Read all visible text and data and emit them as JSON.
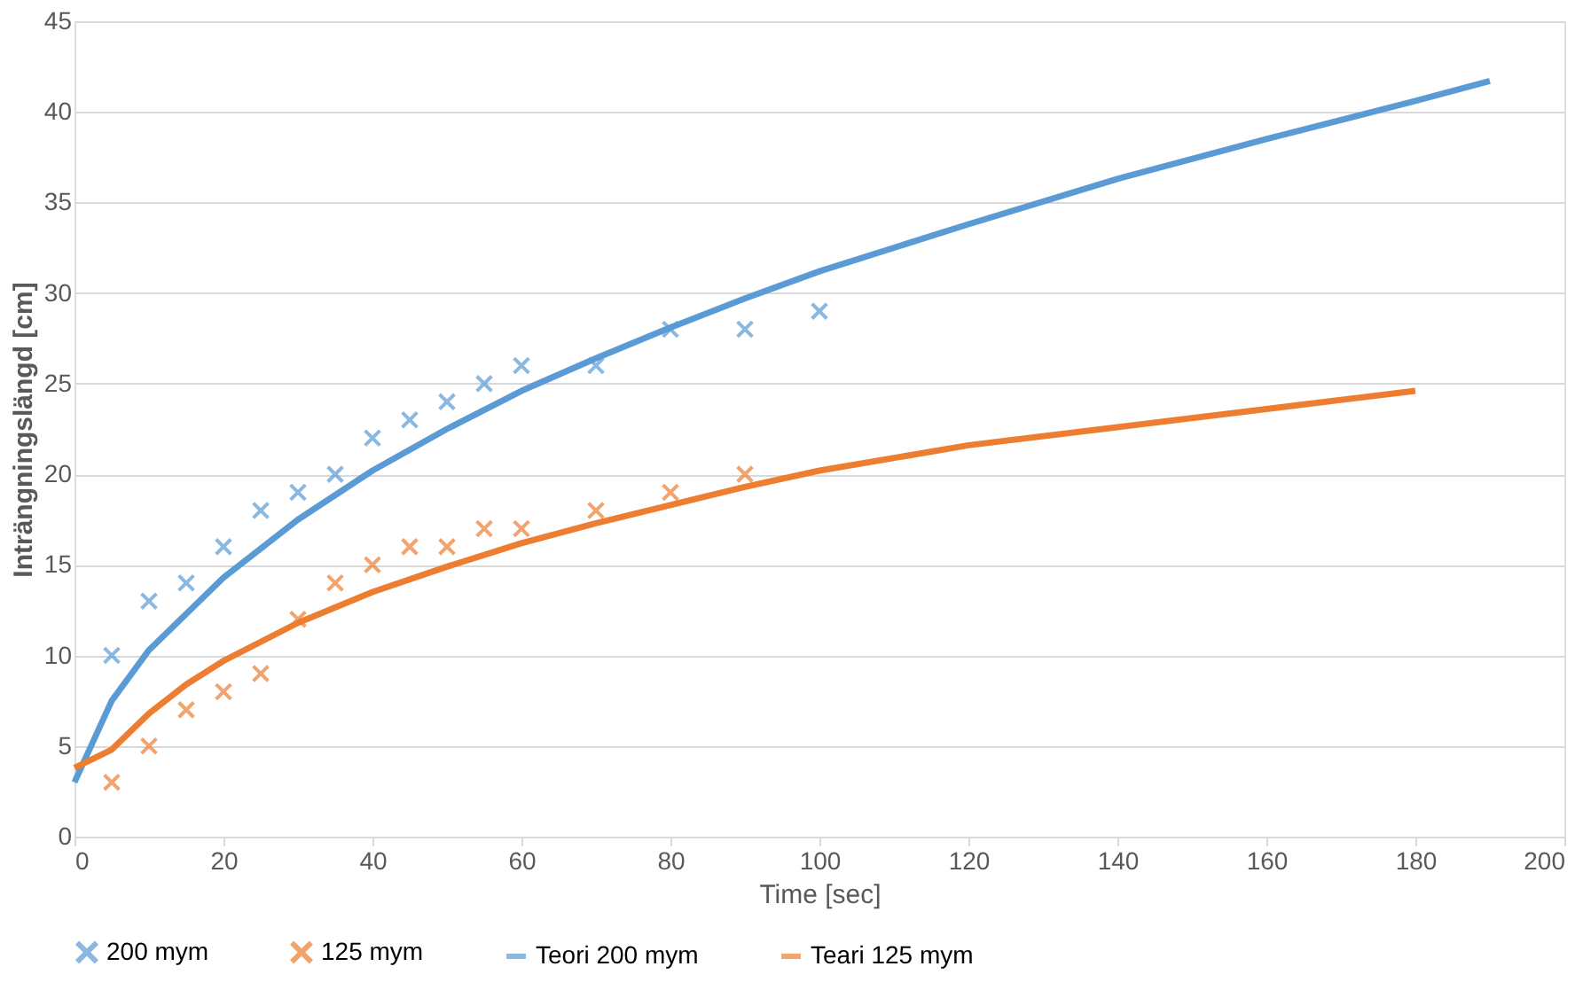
{
  "chart_data": {
    "type": "scatter",
    "xlabel": "Time [sec]",
    "ylabel": "Inträngningslängd [cm]",
    "xlim": [
      0,
      200
    ],
    "xticks": [
      0,
      20,
      40,
      60,
      80,
      100,
      120,
      140,
      160,
      180,
      200
    ],
    "ylim": [
      0,
      45
    ],
    "yticks": [
      0,
      5,
      10,
      15,
      20,
      25,
      30,
      35,
      40,
      45
    ],
    "grid": "y",
    "legend": "bottom",
    "series": [
      {
        "name": "200 mym",
        "marker": "cross",
        "color": "#5b9bd5",
        "x": [
          5,
          10,
          15,
          20,
          25,
          30,
          35,
          40,
          45,
          50,
          55,
          60,
          70,
          80,
          90,
          100
        ],
        "values": [
          10,
          13,
          14,
          16,
          18,
          19,
          20,
          22,
          23,
          24,
          25,
          26,
          26,
          28,
          28,
          29
        ]
      },
      {
        "name": "125 mym",
        "marker": "cross",
        "color": "#ed7d31",
        "x": [
          5,
          10,
          15,
          20,
          25,
          30,
          35,
          40,
          45,
          50,
          55,
          60,
          70,
          80,
          90
        ],
        "values": [
          3,
          5,
          7,
          8,
          9,
          12,
          14,
          15,
          16,
          16,
          17,
          17,
          18,
          19,
          20
        ]
      },
      {
        "name": "Teori 200 mym",
        "type": "line",
        "marker": "none",
        "line_style": "solid",
        "color": "#5b9bd5",
        "x": [
          0,
          5,
          10,
          20,
          30,
          40,
          50,
          60,
          70,
          80,
          90,
          100,
          120,
          140,
          160,
          180,
          190
        ],
        "values": [
          3,
          7.5,
          10.3,
          14.3,
          17.5,
          20.2,
          22.5,
          24.6,
          26.4,
          28.1,
          29.7,
          31.2,
          33.8,
          36.3,
          38.5,
          40.6,
          41.7
        ]
      },
      {
        "name": "Teari 125 mym",
        "type": "line",
        "marker": "none",
        "line_style": "solid",
        "color": "#ed7d31",
        "x": [
          0,
          5,
          10,
          15,
          20,
          30,
          40,
          50,
          60,
          70,
          80,
          90,
          100,
          120,
          140,
          160,
          180
        ],
        "values": [
          3.8,
          4.8,
          6.8,
          8.4,
          9.7,
          11.8,
          13.5,
          14.9,
          16.2,
          17.3,
          18.3,
          19.3,
          20.2,
          21.6,
          22.6,
          23.6,
          24.6
        ]
      }
    ]
  }
}
